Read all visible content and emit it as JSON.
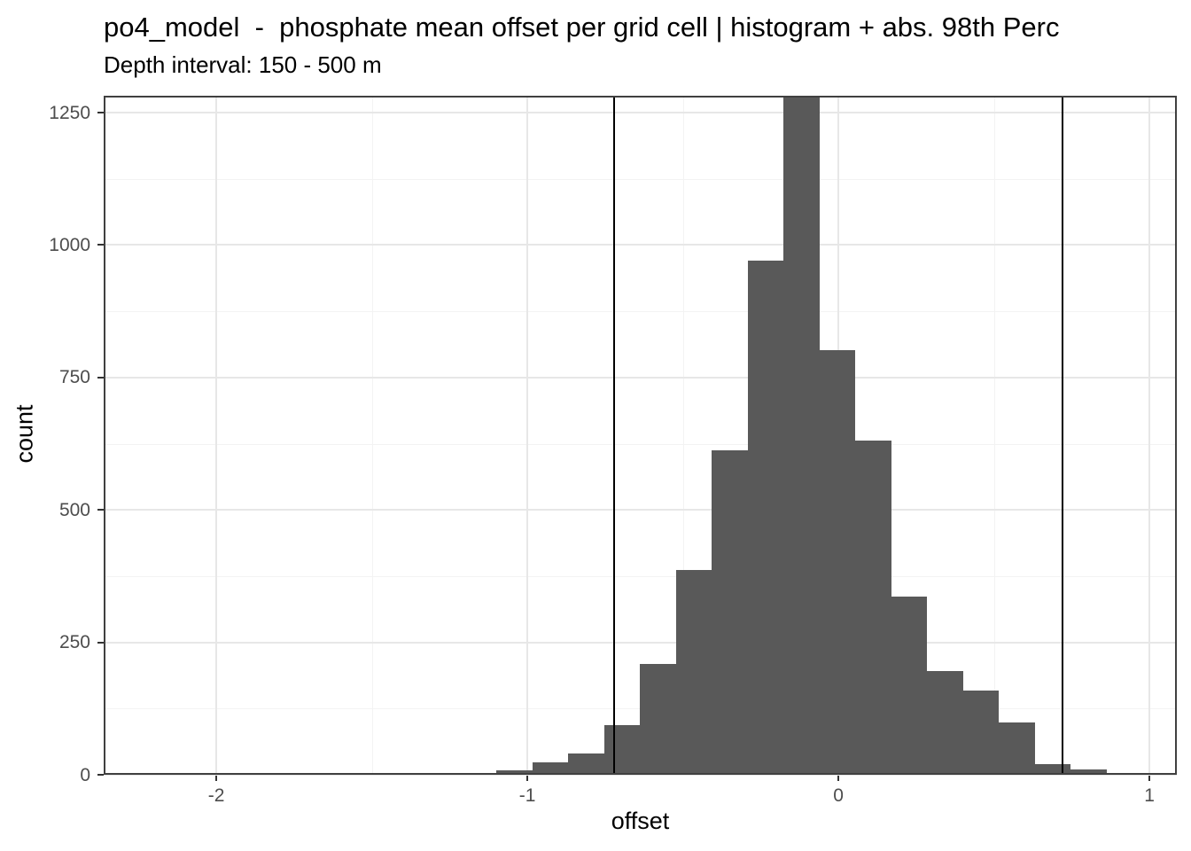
{
  "chart": {
    "title": "po4_model  -  phosphate mean offset per grid cell | histogram + abs. 98th Perc",
    "subtitle": "Depth interval: 150 - 500 m",
    "xlabel": "offset",
    "ylabel": "count"
  },
  "chart_data": {
    "type": "histogram",
    "title": "po4_model  -  phosphate mean offset per grid cell | histogram + abs. 98th Perc",
    "subtitle": "Depth interval: 150 - 500 m",
    "xlabel": "offset",
    "ylabel": "count",
    "legend": "none",
    "grid": true,
    "xlim": [
      -2.362,
      1.088
    ],
    "ylim": [
      0,
      1282
    ],
    "x_ticks": [
      -2,
      -1,
      0,
      1
    ],
    "x_tick_labels": [
      "-2",
      "-1",
      "0",
      "1"
    ],
    "y_ticks": [
      0,
      250,
      500,
      750,
      1000,
      1250
    ],
    "y_tick_labels": [
      "0",
      "250",
      "500",
      "750",
      "1000",
      "1250"
    ],
    "x_minor_gridlines": [
      -1.5,
      -0.5,
      0.5
    ],
    "y_minor_gridlines": [
      125,
      375,
      625,
      875,
      1125
    ],
    "bin_start": -1.561,
    "bin_width": 0.1154,
    "counts": [
      4,
      0,
      3,
      0,
      8,
      23,
      40,
      94,
      209,
      387,
      612,
      970,
      1282,
      802,
      631,
      336,
      196,
      159,
      99,
      20,
      10
    ],
    "clipped_bin_index": 12,
    "clipped_bin_note": "tallest bar reaches panel top (count shown is visible portion, true count >= 1282)",
    "vlines": [
      -0.72,
      0.72
    ],
    "vline_meaning": "abs. 98th percentile",
    "colors": {
      "bar_fill": "#595959",
      "vline": "#000000",
      "grid_major": "#e7e7e7",
      "grid_minor": "#f3f3f3",
      "panel_border": "#404040",
      "axis_tick": "#333333",
      "axis_text": "#4d4d4d",
      "title_text": "#000000"
    }
  }
}
